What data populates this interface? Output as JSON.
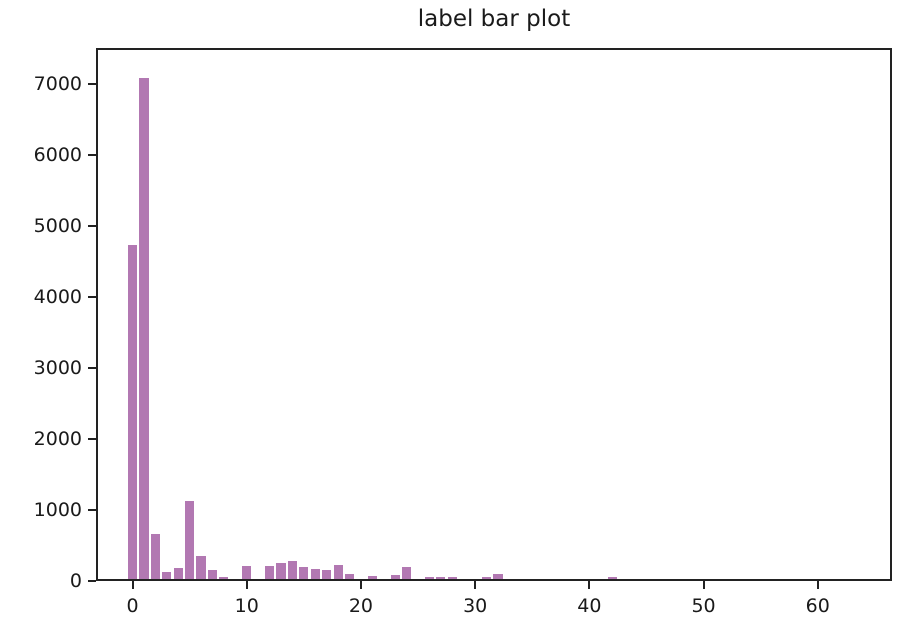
{
  "chart_data": {
    "type": "bar",
    "title": "label bar plot",
    "xlabel": "",
    "ylabel": "",
    "x": [
      0,
      1,
      2,
      3,
      4,
      5,
      6,
      7,
      8,
      10,
      12,
      13,
      14,
      15,
      16,
      17,
      18,
      19,
      21,
      23,
      24,
      26,
      27,
      28,
      31,
      32,
      42
    ],
    "values": [
      4740,
      7100,
      640,
      100,
      160,
      1100,
      330,
      130,
      30,
      190,
      190,
      230,
      255,
      175,
      135,
      125,
      205,
      65,
      45,
      55,
      175,
      35,
      35,
      30,
      30,
      70,
      25
    ],
    "bar_width_units": 0.8,
    "x_ticks": [
      0,
      10,
      20,
      30,
      40,
      50,
      60
    ],
    "y_ticks": [
      0,
      1000,
      2000,
      3000,
      4000,
      5000,
      6000,
      7000
    ],
    "xlim": [
      -3.2,
      66.5
    ],
    "ylim": [
      0,
      7500
    ],
    "grid": false,
    "legend": null,
    "colors": {
      "bar_fill": "#b278b2",
      "axis": "#222222",
      "text": "#1a1a1a",
      "background": "#ffffff"
    }
  }
}
